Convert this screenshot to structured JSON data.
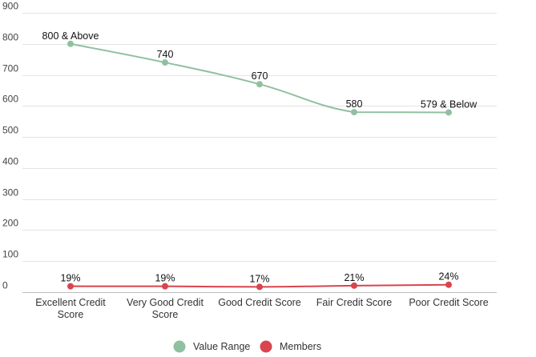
{
  "chart_data": {
    "type": "line",
    "categories": [
      [
        "Excellent Credit",
        "Score"
      ],
      [
        "Very Good Credit",
        "Score"
      ],
      [
        "Good Credit Score"
      ],
      [
        "Fair Credit Score"
      ],
      [
        "Poor Credit Score"
      ]
    ],
    "y_ticks": [
      "900",
      "800",
      "700",
      "600",
      "500",
      "400",
      "300",
      "200",
      "100",
      "0"
    ],
    "ylim": [
      0,
      900
    ],
    "grid": true,
    "legend_position": "bottom",
    "series": [
      {
        "name": "Value Range",
        "color": "#8fc1a0",
        "values": [
          800,
          740,
          670,
          580,
          579
        ],
        "labels": [
          "800 & Above",
          "740",
          "670",
          "580",
          "579 & Below"
        ]
      },
      {
        "name": "Members",
        "color": "#d9444e",
        "values": [
          19,
          19,
          17,
          21,
          24
        ],
        "labels": [
          "19%",
          "19%",
          "17%",
          "21%",
          "24%"
        ]
      }
    ]
  }
}
